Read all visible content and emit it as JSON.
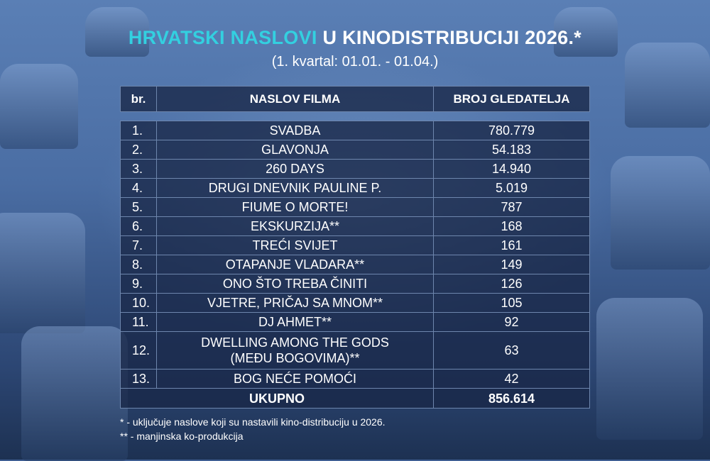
{
  "title": {
    "highlight": "HRVATSKI NASLOVI",
    "rest": " U KINODISTRIBUCIJI 2026.*",
    "accent_color": "#33d0e0"
  },
  "subtitle": "(1. kvartal: 01.01. - 01.04.)",
  "table": {
    "headers": [
      "br.",
      "NASLOV FILMA",
      "BROJ GLEDATELJA"
    ],
    "rows": [
      {
        "no": "1.",
        "title": "SVADBA",
        "viewers": "780.779"
      },
      {
        "no": "2.",
        "title": "GLAVONJA",
        "viewers": "54.183"
      },
      {
        "no": "3.",
        "title": "260 DAYS",
        "viewers": "14.940"
      },
      {
        "no": "4.",
        "title": "DRUGI DNEVNIK PAULINE P.",
        "viewers": "5.019"
      },
      {
        "no": "5.",
        "title": "FIUME O MORTE!",
        "viewers": "787"
      },
      {
        "no": "6.",
        "title": "EKSKURZIJA**",
        "viewers": "168"
      },
      {
        "no": "7.",
        "title": "TREĆI SVIJET",
        "viewers": "161"
      },
      {
        "no": "8.",
        "title": "OTAPANJE VLADARA**",
        "viewers": "149"
      },
      {
        "no": "9.",
        "title": "ONO ŠTO TREBA ČINITI",
        "viewers": "126"
      },
      {
        "no": "10.",
        "title": "VJETRE, PRIČAJ SA MNOM**",
        "viewers": "105"
      },
      {
        "no": "11.",
        "title": "DJ AHMET**",
        "viewers": "92"
      },
      {
        "no": "12.",
        "title": "DWELLING AMONG THE GODS",
        "title_line2": "(MEĐU BOGOVIMA)**",
        "viewers": "63"
      },
      {
        "no": "13.",
        "title": "BOG NEĆE POMOĆI",
        "viewers": "42"
      }
    ],
    "total": {
      "label": "UKUPNO",
      "value": "856.614"
    }
  },
  "notes": [
    "* - uključuje naslove koji su nastavili kino-distribuciju u 2026.",
    "** - manjinska ko-produkcija"
  ]
}
